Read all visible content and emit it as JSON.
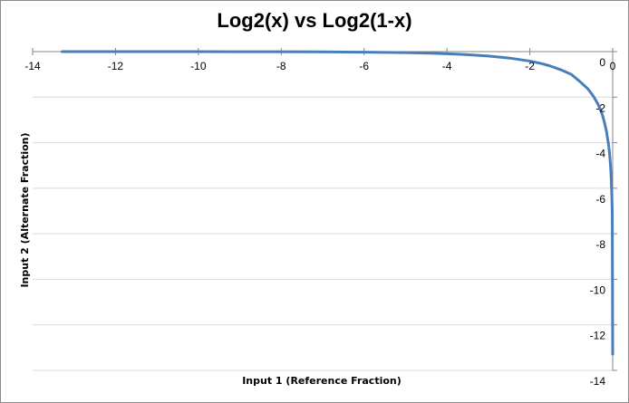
{
  "chart_data": {
    "type": "line",
    "title": "Log2(x) vs Log2(1-x)",
    "xlabel": "Input 1 (Reference Fraction)",
    "ylabel": "Input 2 (Alternate Fraction)",
    "xlim": [
      -14,
      0
    ],
    "ylim": [
      -14,
      0
    ],
    "x_ticks": [
      -14,
      -12,
      -10,
      -8,
      -6,
      -4,
      -2,
      0
    ],
    "y_ticks": [
      0,
      -2,
      -4,
      -6,
      -8,
      -10,
      -12,
      -14
    ],
    "x_tick_labels": [
      "-14",
      "-12",
      "-10",
      "-8",
      "-6",
      "-4",
      "-2",
      "0"
    ],
    "y_tick_labels": [
      "0",
      "-2",
      "-4",
      "-6",
      "-8",
      "-10",
      "-12",
      "-14"
    ],
    "grid": "horizontal",
    "legend": "none",
    "x_axis_position": "top",
    "y_axis_position": "right",
    "series": [
      {
        "color": "#4a7ebb",
        "x": [
          -13.29,
          -12,
          -11,
          -10,
          -9,
          -8,
          -7,
          -6,
          -5,
          -4.5,
          -4,
          -3.5,
          -3,
          -2.5,
          -2,
          -1.75,
          -1.5,
          -1.25,
          -1,
          -0.8,
          -0.6,
          -0.45,
          -0.35,
          -0.3,
          -0.25,
          -0.2,
          -0.15,
          -0.12,
          -0.1,
          -0.08,
          -0.06,
          -0.04,
          -0.02,
          -0.01,
          -0.0001
        ],
        "y": [
          -0.0001,
          -0.0004,
          -0.0007,
          -0.0014,
          -0.0028,
          -0.0057,
          -0.0113,
          -0.0227,
          -0.0458,
          -0.0653,
          -0.0931,
          -0.1332,
          -0.1926,
          -0.2811,
          -0.415,
          -0.5114,
          -0.6358,
          -0.798,
          -1.0,
          -1.3,
          -1.63,
          -2.0,
          -2.33,
          -2.53,
          -2.77,
          -3.1,
          -3.5,
          -3.86,
          -4.07,
          -4.4,
          -4.81,
          -5.37,
          -6.3,
          -7.1,
          -13.29
        ]
      }
    ]
  }
}
